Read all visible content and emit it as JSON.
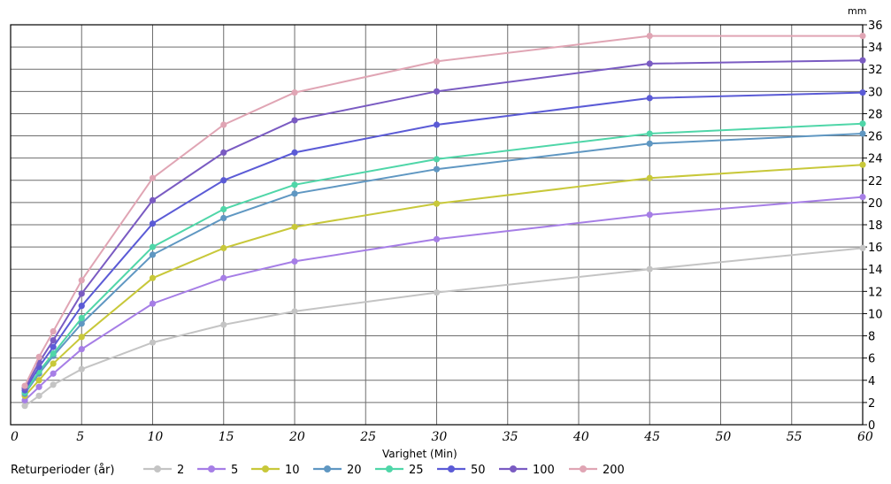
{
  "chart_data": {
    "type": "line",
    "title": "",
    "xlabel": "Varighet  (Min)",
    "ylabel": "",
    "unit": "mm",
    "xlim": [
      0,
      60
    ],
    "ylim": [
      0,
      36
    ],
    "x_ticks": [
      0,
      5,
      10,
      15,
      20,
      25,
      30,
      35,
      40,
      45,
      50,
      55,
      60
    ],
    "y_ticks": [
      0,
      2,
      4,
      6,
      8,
      10,
      12,
      14,
      16,
      18,
      20,
      22,
      24,
      26,
      28,
      30,
      32,
      34,
      36
    ],
    "grid": true,
    "legend_title": "Returperioder (år)",
    "legend_position": "bottom-left",
    "x": [
      1,
      2,
      3,
      5,
      10,
      15,
      20,
      30,
      45,
      60
    ],
    "series": [
      {
        "name": "2",
        "color": "#c4c4c4",
        "values": [
          1.7,
          2.6,
          3.6,
          5.0,
          7.4,
          9.0,
          10.2,
          11.9,
          14.0,
          15.9
        ]
      },
      {
        "name": "5",
        "color": "#a67ee6",
        "values": [
          2.2,
          3.4,
          4.6,
          6.8,
          10.9,
          13.2,
          14.7,
          16.7,
          18.9,
          20.5
        ]
      },
      {
        "name": "10",
        "color": "#c8c83a",
        "values": [
          2.6,
          4.0,
          5.5,
          7.9,
          13.2,
          15.9,
          17.8,
          19.9,
          22.2,
          23.4
        ]
      },
      {
        "name": "20",
        "color": "#5f97c2",
        "values": [
          2.8,
          4.6,
          6.2,
          9.1,
          15.3,
          18.6,
          20.8,
          23.0,
          25.3,
          26.2
        ]
      },
      {
        "name": "25",
        "color": "#4fd6a8",
        "values": [
          2.9,
          4.8,
          6.4,
          9.6,
          16.0,
          19.4,
          21.6,
          23.9,
          26.2,
          27.1
        ]
      },
      {
        "name": "50",
        "color": "#5b5bd6",
        "values": [
          3.1,
          5.2,
          7.0,
          10.7,
          18.1,
          22.0,
          24.5,
          27.0,
          29.4,
          29.9
        ]
      },
      {
        "name": "100",
        "color": "#7a5bc2",
        "values": [
          3.3,
          5.6,
          7.6,
          11.8,
          20.2,
          24.5,
          27.4,
          30.0,
          32.5,
          32.8
        ]
      },
      {
        "name": "200",
        "color": "#e0a5b4",
        "values": [
          3.5,
          6.1,
          8.4,
          13.0,
          22.2,
          27.0,
          29.9,
          32.7,
          35.0,
          35.0
        ]
      }
    ]
  }
}
